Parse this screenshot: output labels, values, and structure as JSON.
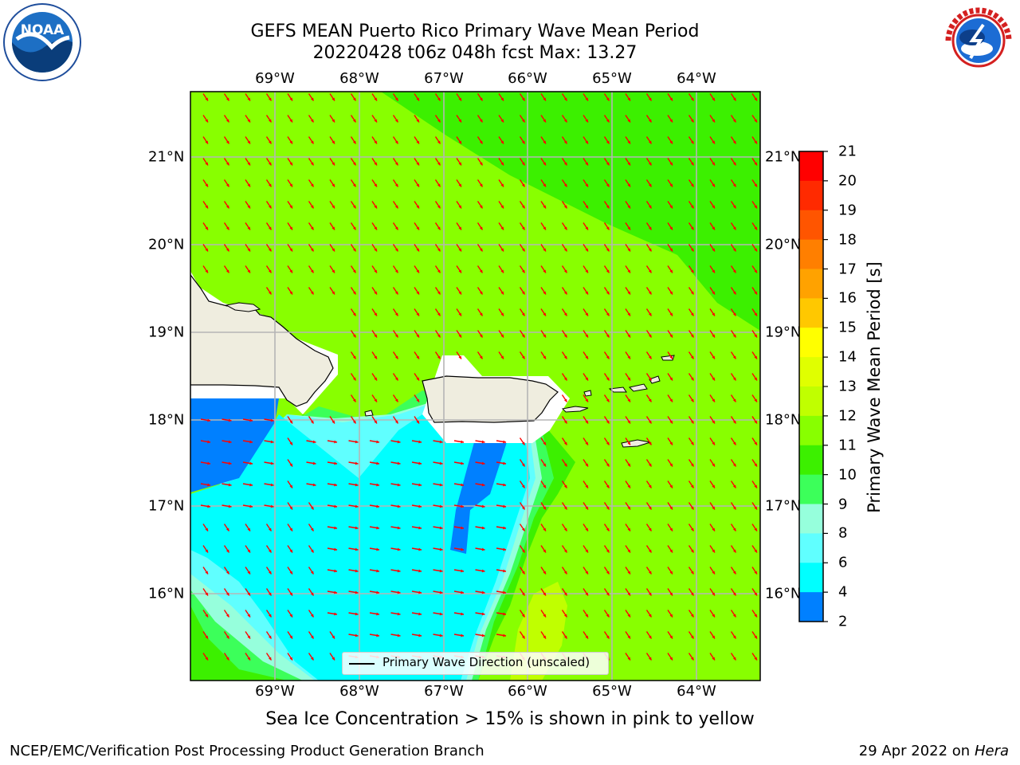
{
  "title": {
    "line1": "GEFS MEAN Puerto Rico Primary Wave Mean Period",
    "line2": "20220428 t06z 048h fcst   Max: 13.27"
  },
  "map": {
    "lon_labels": [
      "69°W",
      "68°W",
      "67°W",
      "66°W",
      "65°W",
      "64°W"
    ],
    "lat_labels": [
      "21°N",
      "20°N",
      "19°N",
      "18°N",
      "17°N",
      "16°N"
    ],
    "legend_label": "Primary Wave Direction (unscaled)",
    "arrow_color": "#ff0000",
    "land_color": "#efeddf",
    "background_field_color": "#88ff00"
  },
  "colorbar": {
    "title": "Primary Wave Mean Period [s]",
    "ticks": [
      "21",
      "20",
      "19",
      "18",
      "17",
      "16",
      "15",
      "14",
      "13",
      "12",
      "11",
      "10",
      "9",
      "8",
      "6",
      "4",
      "2"
    ],
    "colors": [
      "#ff0000",
      "#ff2a00",
      "#ff5500",
      "#ff7f00",
      "#ffa200",
      "#ffc800",
      "#ffff00",
      "#e0ff00",
      "#c0ff00",
      "#88ff00",
      "#3cf000",
      "#3cff5a",
      "#96ffdc",
      "#60ffff",
      "#00ffff",
      "#0080ff",
      "#0000ff"
    ]
  },
  "note": "Sea Ice Concentration > 15% is shown in pink to yellow",
  "footer": {
    "left": "NCEP/EMC/Verification Post Processing Product Generation Branch",
    "right_prefix": "29 Apr 2022 on ",
    "right_machine": "Hera"
  },
  "logos": {
    "noaa_text": "NOAA",
    "nws_text": "NATIONAL WEATHER SERVICE"
  }
}
